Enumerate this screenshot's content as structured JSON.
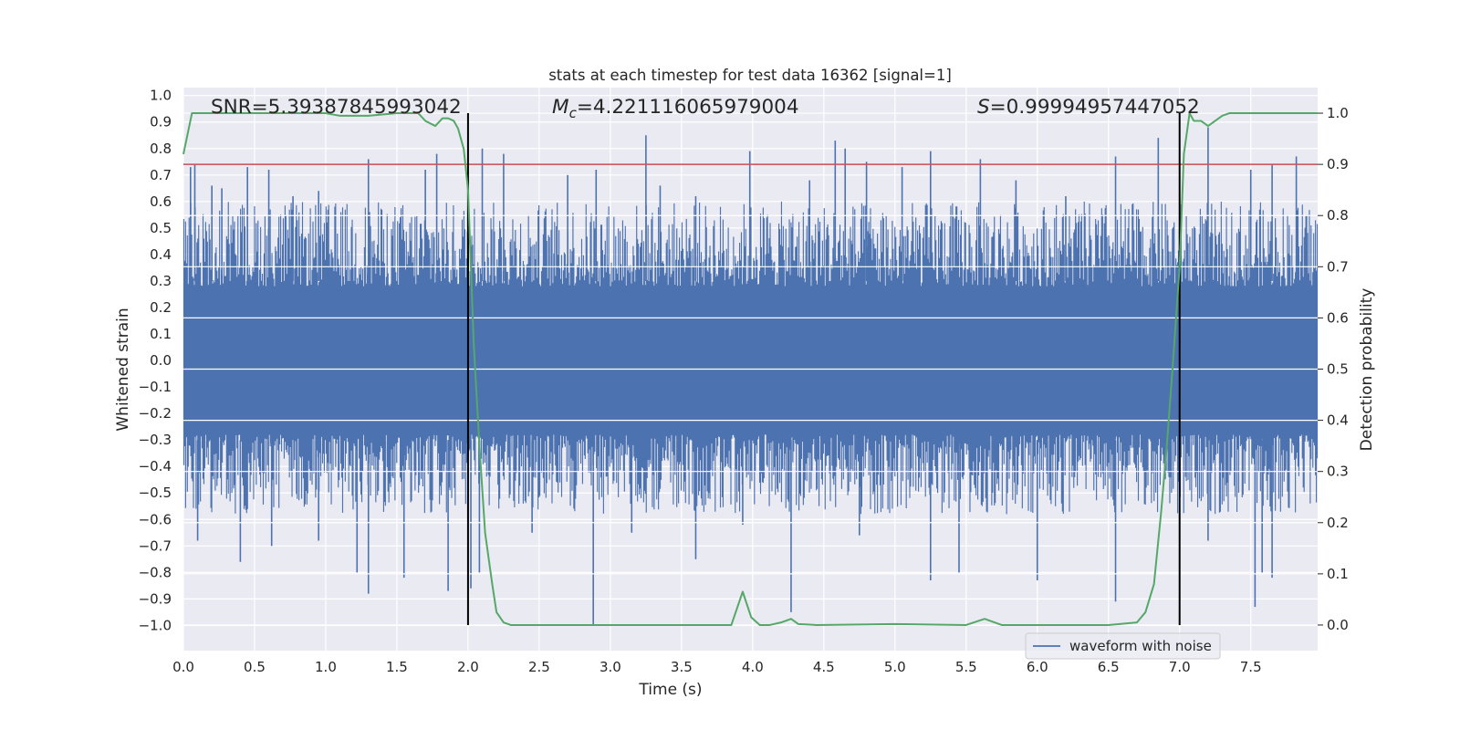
{
  "chart_data": {
    "type": "line",
    "title": "stats at each timestep for test data 16362 [signal=1]",
    "xlabel": "Time (s)",
    "ylabel_left": "Whitened strain",
    "ylabel_right": "Detection probability",
    "xlim": [
      0.0,
      7.97
    ],
    "ylim_left": [
      -1.095,
      1.03
    ],
    "ylim_right": [
      -0.05,
      1.05
    ],
    "x_ticks": [
      0.0,
      0.5,
      1.0,
      1.5,
      2.0,
      2.5,
      3.0,
      3.5,
      4.0,
      4.5,
      5.0,
      5.5,
      6.0,
      6.5,
      7.0,
      7.5
    ],
    "x_tick_labels": [
      "0.0",
      "0.5",
      "1.0",
      "1.5",
      "2.0",
      "2.5",
      "3.0",
      "3.5",
      "4.0",
      "4.5",
      "5.0",
      "5.5",
      "6.0",
      "6.5",
      "7.0",
      "7.5"
    ],
    "y_left_ticks": [
      1.0,
      0.9,
      0.8,
      0.7,
      0.6,
      0.5,
      0.4,
      0.3,
      0.2,
      0.1,
      0.0,
      -0.1,
      -0.2,
      -0.3,
      -0.4,
      -0.5,
      -0.6,
      -0.7,
      -0.8,
      -0.9,
      -1.0
    ],
    "y_left_tick_labels": [
      "1.0",
      "0.9",
      "0.8",
      "0.7",
      "0.6",
      "0.5",
      "0.4",
      "0.3",
      "0.2",
      "0.1",
      "0.0",
      "−0.1",
      "−0.2",
      "−0.3",
      "−0.4",
      "−0.5",
      "−0.6",
      "−0.7",
      "−0.8",
      "−0.9",
      "−1.0"
    ],
    "y_right_ticks": [
      1.0,
      0.9,
      0.8,
      0.7,
      0.6,
      0.5,
      0.4,
      0.3,
      0.2,
      0.1,
      0.0
    ],
    "y_right_tick_labels": [
      "1.0",
      "0.9",
      "0.8",
      "0.7",
      "0.6",
      "0.5",
      "0.4",
      "0.3",
      "0.2",
      "0.1",
      "0.0"
    ],
    "grid": true,
    "legend": {
      "placement": "lower-right",
      "entries": [
        "waveform with noise"
      ]
    },
    "annotations": {
      "snr": "SNR=5.39387845993042",
      "mc_symbol": "M",
      "mc_subscript": "c",
      "mc_value": "=4.221116065979004",
      "s_symbol": "S",
      "s_value": "=0.99994957447052"
    },
    "threshold": {
      "value": 0.9,
      "axis": "right",
      "color": "#c44e52"
    },
    "vlines": [
      2.0,
      7.0
    ],
    "colors": {
      "waveform": "#4c72b0",
      "probability": "#55a868",
      "threshold": "#c44e52",
      "vline": "#000000",
      "background": "#eaeaf2",
      "grid": "#ffffff"
    },
    "series": [
      {
        "name": "waveform with noise",
        "axis": "left",
        "envelope_note_free": true,
        "upper_spikes": [
          [
            0.05,
            0.73
          ],
          [
            0.08,
            0.74
          ],
          [
            0.2,
            0.66
          ],
          [
            0.27,
            0.65
          ],
          [
            0.45,
            0.73
          ],
          [
            0.6,
            0.72
          ],
          [
            0.77,
            0.62
          ],
          [
            0.95,
            0.64
          ],
          [
            1.3,
            0.76
          ],
          [
            1.7,
            0.72
          ],
          [
            1.78,
            0.78
          ],
          [
            2.1,
            0.8
          ],
          [
            2.25,
            0.78
          ],
          [
            2.7,
            0.7
          ],
          [
            2.9,
            0.72
          ],
          [
            3.25,
            0.85
          ],
          [
            3.35,
            0.66
          ],
          [
            3.6,
            0.62
          ],
          [
            3.98,
            0.79
          ],
          [
            4.4,
            0.68
          ],
          [
            4.58,
            0.83
          ],
          [
            4.65,
            0.8
          ],
          [
            4.8,
            0.75
          ],
          [
            5.05,
            0.73
          ],
          [
            5.25,
            0.79
          ],
          [
            5.6,
            0.76
          ],
          [
            5.85,
            0.68
          ],
          [
            6.2,
            0.62
          ],
          [
            6.55,
            0.77
          ],
          [
            6.85,
            0.84
          ],
          [
            7.2,
            0.88
          ],
          [
            7.5,
            0.72
          ],
          [
            7.65,
            0.74
          ],
          [
            7.82,
            0.77
          ]
        ],
        "lower_spikes": [
          [
            0.1,
            -0.68
          ],
          [
            0.4,
            -0.76
          ],
          [
            0.62,
            -0.7
          ],
          [
            0.95,
            -0.68
          ],
          [
            1.22,
            -0.8
          ],
          [
            1.3,
            -0.88
          ],
          [
            1.55,
            -0.82
          ],
          [
            1.86,
            -0.87
          ],
          [
            2.02,
            -0.86
          ],
          [
            2.08,
            -0.8
          ],
          [
            2.45,
            -0.65
          ],
          [
            2.88,
            -1.0
          ],
          [
            3.15,
            -0.65
          ],
          [
            3.6,
            -0.75
          ],
          [
            3.93,
            -0.62
          ],
          [
            4.27,
            -0.95
          ],
          [
            4.75,
            -0.66
          ],
          [
            5.25,
            -0.83
          ],
          [
            5.45,
            -0.8
          ],
          [
            6.0,
            -0.83
          ],
          [
            6.55,
            -0.91
          ],
          [
            7.2,
            -0.68
          ],
          [
            7.53,
            -0.93
          ],
          [
            7.58,
            -0.8
          ],
          [
            7.65,
            -0.82
          ]
        ]
      },
      {
        "name": "",
        "axis": "right",
        "x": [
          0.0,
          0.06,
          0.15,
          0.3,
          0.6,
          1.0,
          1.1,
          1.3,
          1.5,
          1.65,
          1.7,
          1.77,
          1.82,
          1.86,
          1.9,
          1.93,
          1.97,
          2.0,
          2.04,
          2.08,
          2.12,
          2.17,
          2.2,
          2.25,
          2.3,
          2.4,
          2.6,
          3.0,
          3.5,
          3.85,
          3.93,
          3.99,
          4.05,
          4.12,
          4.2,
          4.27,
          4.32,
          4.45,
          5.0,
          5.5,
          5.63,
          5.75,
          6.0,
          6.5,
          6.7,
          6.76,
          6.82,
          6.87,
          6.91,
          6.95,
          7.0,
          7.03,
          7.07,
          7.1,
          7.15,
          7.2,
          7.25,
          7.3,
          7.35,
          7.4,
          7.6,
          7.97
        ],
        "y": [
          0.92,
          1.0,
          1.0,
          1.0,
          1.0,
          1.0,
          0.995,
          0.995,
          1.0,
          1.0,
          0.985,
          0.975,
          0.99,
          0.99,
          0.985,
          0.97,
          0.93,
          0.85,
          0.55,
          0.35,
          0.18,
          0.08,
          0.025,
          0.005,
          0.0,
          0.0,
          0.0,
          0.0,
          0.0,
          0.0,
          0.065,
          0.015,
          0.0,
          0.0,
          0.005,
          0.012,
          0.002,
          0.0,
          0.002,
          0.0,
          0.012,
          0.0,
          0.0,
          0.0,
          0.005,
          0.025,
          0.08,
          0.22,
          0.35,
          0.5,
          0.7,
          0.92,
          1.0,
          0.985,
          0.985,
          0.975,
          0.985,
          0.995,
          1.0,
          1.0,
          1.0,
          1.0
        ]
      }
    ]
  }
}
